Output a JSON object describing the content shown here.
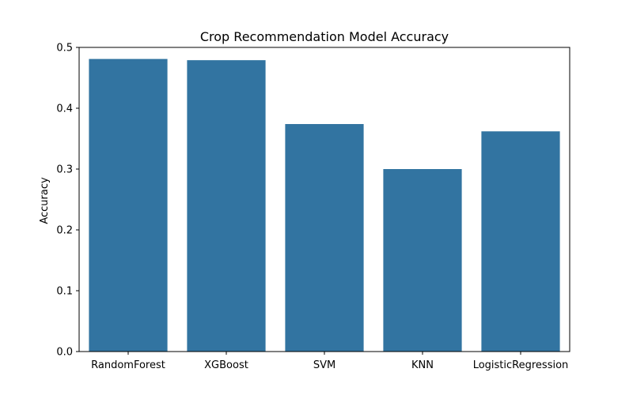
{
  "chart_data": {
    "type": "bar",
    "title": "Crop Recommendation Model Accuracy",
    "xlabel": "",
    "ylabel": "Accuracy",
    "categories": [
      "RandomForest",
      "XGBoost",
      "SVM",
      "KNN",
      "LogisticRegression"
    ],
    "values": [
      0.481,
      0.479,
      0.374,
      0.3,
      0.362
    ],
    "ylim": [
      0,
      0.5
    ],
    "yticks": [
      0.0,
      0.1,
      0.2,
      0.3,
      0.4,
      0.5
    ],
    "ytick_labels": [
      "0.0",
      "0.1",
      "0.2",
      "0.3",
      "0.4",
      "0.5"
    ],
    "bar_color": "#3274a1",
    "grid": false,
    "legend": "none"
  }
}
